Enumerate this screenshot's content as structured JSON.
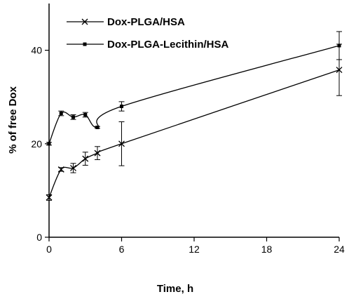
{
  "chart_data": {
    "type": "line",
    "xlabel": "Time,  h",
    "ylabel": "% of free Dox",
    "xlim": [
      0,
      24
    ],
    "ylim": [
      0,
      50
    ],
    "xticks": [
      0,
      6,
      12,
      18,
      24
    ],
    "yticks": [
      0,
      20,
      40
    ],
    "grid": false,
    "legend_position": "top-left",
    "series": [
      {
        "name": "Dox-PLGA/HSA",
        "marker": "x",
        "x": [
          0,
          1,
          2,
          3,
          4,
          6,
          24
        ],
        "y": [
          8.5,
          14.5,
          14.8,
          16.8,
          18.0,
          20.0,
          35.8
        ],
        "err": [
          0.6,
          0.4,
          1.0,
          1.4,
          1.4,
          4.7,
          5.5
        ]
      },
      {
        "name": "Dox-PLGA-Lecithin/HSA",
        "marker": "square",
        "x": [
          0,
          1,
          2,
          3,
          4,
          6,
          24
        ],
        "y": [
          20.0,
          26.5,
          25.7,
          26.2,
          23.5,
          28.0,
          41.0
        ],
        "err": [
          0.3,
          0.5,
          0.5,
          0.5,
          0.2,
          1.0,
          3.0
        ]
      }
    ]
  }
}
